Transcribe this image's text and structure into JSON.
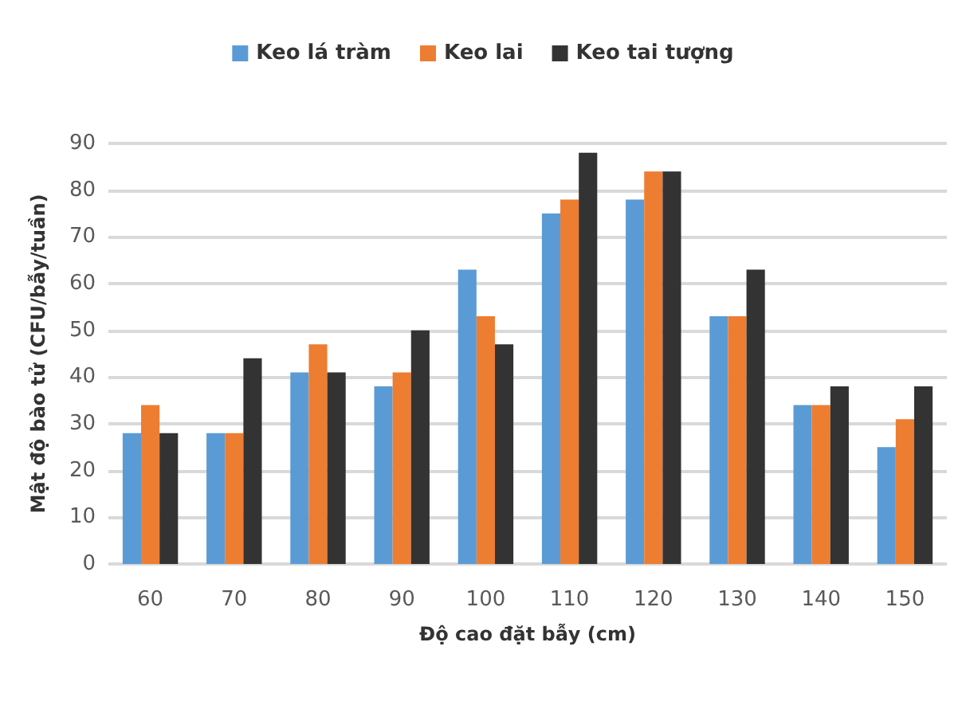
{
  "chart_data": {
    "type": "bar",
    "xlabel": "Độ cao đặt bẫy (cm)",
    "ylabel": "Mật độ bào tử (CFU/bẫy/tuần)",
    "categories": [
      "60",
      "70",
      "80",
      "90",
      "100",
      "110",
      "120",
      "130",
      "140",
      "150"
    ],
    "series": [
      {
        "name": "Keo lá tràm",
        "color": "#5b9bd5",
        "values": [
          28,
          28,
          41,
          38,
          63,
          75,
          78,
          53,
          34,
          25
        ]
      },
      {
        "name": "Keo lai",
        "color": "#ed7d31",
        "values": [
          34,
          28,
          47,
          41,
          53,
          78,
          84,
          53,
          34,
          31
        ]
      },
      {
        "name": "Keo tai tượng",
        "color": "#333333",
        "values": [
          28,
          44,
          41,
          50,
          47,
          88,
          84,
          63,
          38,
          38
        ]
      }
    ],
    "ylim": [
      0,
      90
    ],
    "yticks": [
      0,
      10,
      20,
      30,
      40,
      50,
      60,
      70,
      80,
      90
    ],
    "grid": "y",
    "legend": "top"
  }
}
